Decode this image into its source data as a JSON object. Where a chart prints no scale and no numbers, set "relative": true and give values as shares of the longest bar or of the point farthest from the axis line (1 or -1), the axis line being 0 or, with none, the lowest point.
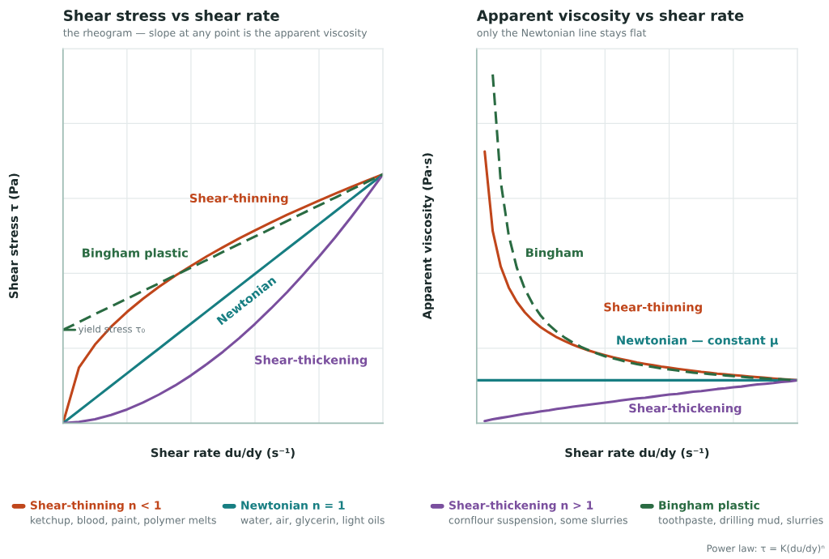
{
  "chart_data": [
    {
      "type": "line",
      "title": "Shear stress vs shear rate",
      "subtitle": "the rheogram — slope at any point is the apparent viscosity",
      "xlabel": "Shear rate du/dy (s⁻¹)",
      "ylabel": "Shear stress τ (Pa)",
      "relative": true,
      "grid": true,
      "tick_labels": false,
      "categories": [
        null,
        null,
        null,
        null,
        null,
        null,
        null,
        null,
        null,
        null,
        null,
        null,
        null,
        null,
        null,
        null,
        null,
        null,
        null,
        null,
        null
      ],
      "series": [
        {
          "name": "Shear-thinning",
          "color": "#c0461b",
          "values": [
            0,
            0.224,
            0.316,
            0.387,
            0.447,
            0.5,
            0.548,
            0.592,
            0.632,
            0.671,
            0.707,
            0.742,
            0.775,
            0.806,
            0.837,
            0.866,
            0.894,
            0.922,
            0.949,
            0.975,
            1
          ]
        },
        {
          "name": "Newtonian",
          "color": "#177e82",
          "values": [
            0,
            0.05,
            0.1,
            0.15,
            0.2,
            0.25,
            0.3,
            0.35,
            0.4,
            0.45,
            0.5,
            0.55,
            0.6,
            0.65,
            0.7,
            0.75,
            0.8,
            0.85,
            0.9,
            0.95,
            1
          ]
        },
        {
          "name": "Shear-thickening",
          "color": "#7a4f9e",
          "values": [
            0,
            0.005,
            0.016,
            0.033,
            0.055,
            0.083,
            0.115,
            0.151,
            0.192,
            0.238,
            0.287,
            0.341,
            0.399,
            0.461,
            0.526,
            0.596,
            0.669,
            0.746,
            0.827,
            0.912,
            1
          ]
        },
        {
          "name": "Bingham plastic",
          "color": "#2a6b42",
          "line_style": "dashed",
          "values": [
            0.375,
            0.406,
            0.438,
            0.469,
            0.5,
            0.531,
            0.562,
            0.594,
            0.625,
            0.656,
            0.688,
            0.719,
            0.75,
            0.781,
            0.812,
            0.844,
            0.875,
            0.906,
            0.938,
            0.969,
            1
          ]
        }
      ],
      "annotations": [
        {
          "text": "yield stress τ₀",
          "y": 0.375
        }
      ]
    },
    {
      "type": "line",
      "title": "Apparent viscosity vs shear rate",
      "subtitle": "only the Newtonian line stays flat",
      "xlabel": "Shear rate du/dy (s⁻¹)",
      "ylabel": "Apparent viscosity (Pa·s)",
      "relative": true,
      "grid": true,
      "tick_labels": false,
      "categories": [
        null,
        null,
        null,
        null,
        null,
        null,
        null,
        null,
        null,
        null,
        null,
        null,
        null,
        null,
        null,
        null,
        null,
        null,
        null,
        null,
        null,
        null,
        null,
        null,
        null,
        null,
        null,
        null,
        null,
        null,
        null,
        null,
        null,
        null,
        null,
        null,
        null,
        null,
        null,
        null,
        null
      ],
      "series": [
        {
          "name": "Shear-thinning",
          "color": "#c0461b",
          "values": [
            null,
            0.779,
            0.551,
            0.449,
            0.389,
            0.348,
            0.318,
            0.294,
            0.275,
            0.26,
            0.246,
            0.235,
            0.225,
            0.216,
            0.208,
            0.201,
            0.195,
            0.189,
            0.184,
            0.179,
            0.174,
            0.17,
            0.166,
            0.162,
            0.159,
            0.156,
            0.153,
            0.15,
            0.147,
            0.145,
            0.142,
            0.14,
            0.138,
            0.136,
            0.134,
            0.132,
            0.13,
            0.128,
            0.126,
            0.125,
            0.123
          ]
        },
        {
          "name": "Newtonian — constant μ",
          "color": "#177e82",
          "values": [
            0.123,
            0.123,
            0.123,
            0.123,
            0.123,
            0.123,
            0.123,
            0.123,
            0.123,
            0.123,
            0.123,
            0.123,
            0.123,
            0.123,
            0.123,
            0.123,
            0.123,
            0.123,
            0.123,
            0.123,
            0.123,
            0.123,
            0.123,
            0.123,
            0.123,
            0.123,
            0.123,
            0.123,
            0.123,
            0.123,
            0.123,
            0.123,
            0.123,
            0.123,
            0.123,
            0.123,
            0.123,
            0.123,
            0.123,
            0.123,
            0.123
          ]
        },
        {
          "name": "Shear-thickening",
          "color": "#7a4f9e",
          "values": [
            null,
            0.006,
            0.011,
            0.015,
            0.019,
            0.023,
            0.027,
            0.03,
            0.034,
            0.037,
            0.041,
            0.044,
            0.047,
            0.05,
            0.053,
            0.056,
            0.059,
            0.062,
            0.065,
            0.068,
            0.071,
            0.073,
            0.076,
            0.079,
            0.082,
            0.084,
            0.087,
            0.09,
            0.092,
            0.095,
            0.098,
            0.1,
            0.103,
            0.105,
            0.108,
            0.111,
            0.113,
            0.115,
            0.118,
            0.12,
            0.123
          ]
        },
        {
          "name": "Bingham",
          "color": "#2a6b42",
          "line_style": "dashed",
          "values": [
            null,
            null,
            1.0,
            0.692,
            0.538,
            0.446,
            0.385,
            0.341,
            0.308,
            0.282,
            0.262,
            0.245,
            0.231,
            0.219,
            0.209,
            0.2,
            0.192,
            0.186,
            0.18,
            0.174,
            0.169,
            0.165,
            0.161,
            0.157,
            0.154,
            0.151,
            0.148,
            0.145,
            0.143,
            0.141,
            0.139,
            0.137,
            0.135,
            0.133,
            0.131,
            0.13,
            0.128,
            0.127,
            0.126,
            0.124,
            0.123
          ]
        }
      ]
    },
    {
      "type": "other",
      "legend": "bottom",
      "series": [
        {
          "name": "Shear-thinning n < 1",
          "color": "#c0461b"
        },
        {
          "name": "Newtonian n = 1",
          "color": "#177e82"
        },
        {
          "name": "Shear-thickening n > 1",
          "color": "#7a4f9e"
        },
        {
          "name": "Bingham plastic",
          "color": "#2a6b42"
        }
      ],
      "annotations": [
        "ketchup, blood, paint, polymer melts",
        "water, air, glycerin, light oils",
        "cornflour suspension, some slurries",
        "toothpaste, drilling mud, slurries",
        "Power law: τ = K(du/dy)ⁿ"
      ]
    }
  ]
}
